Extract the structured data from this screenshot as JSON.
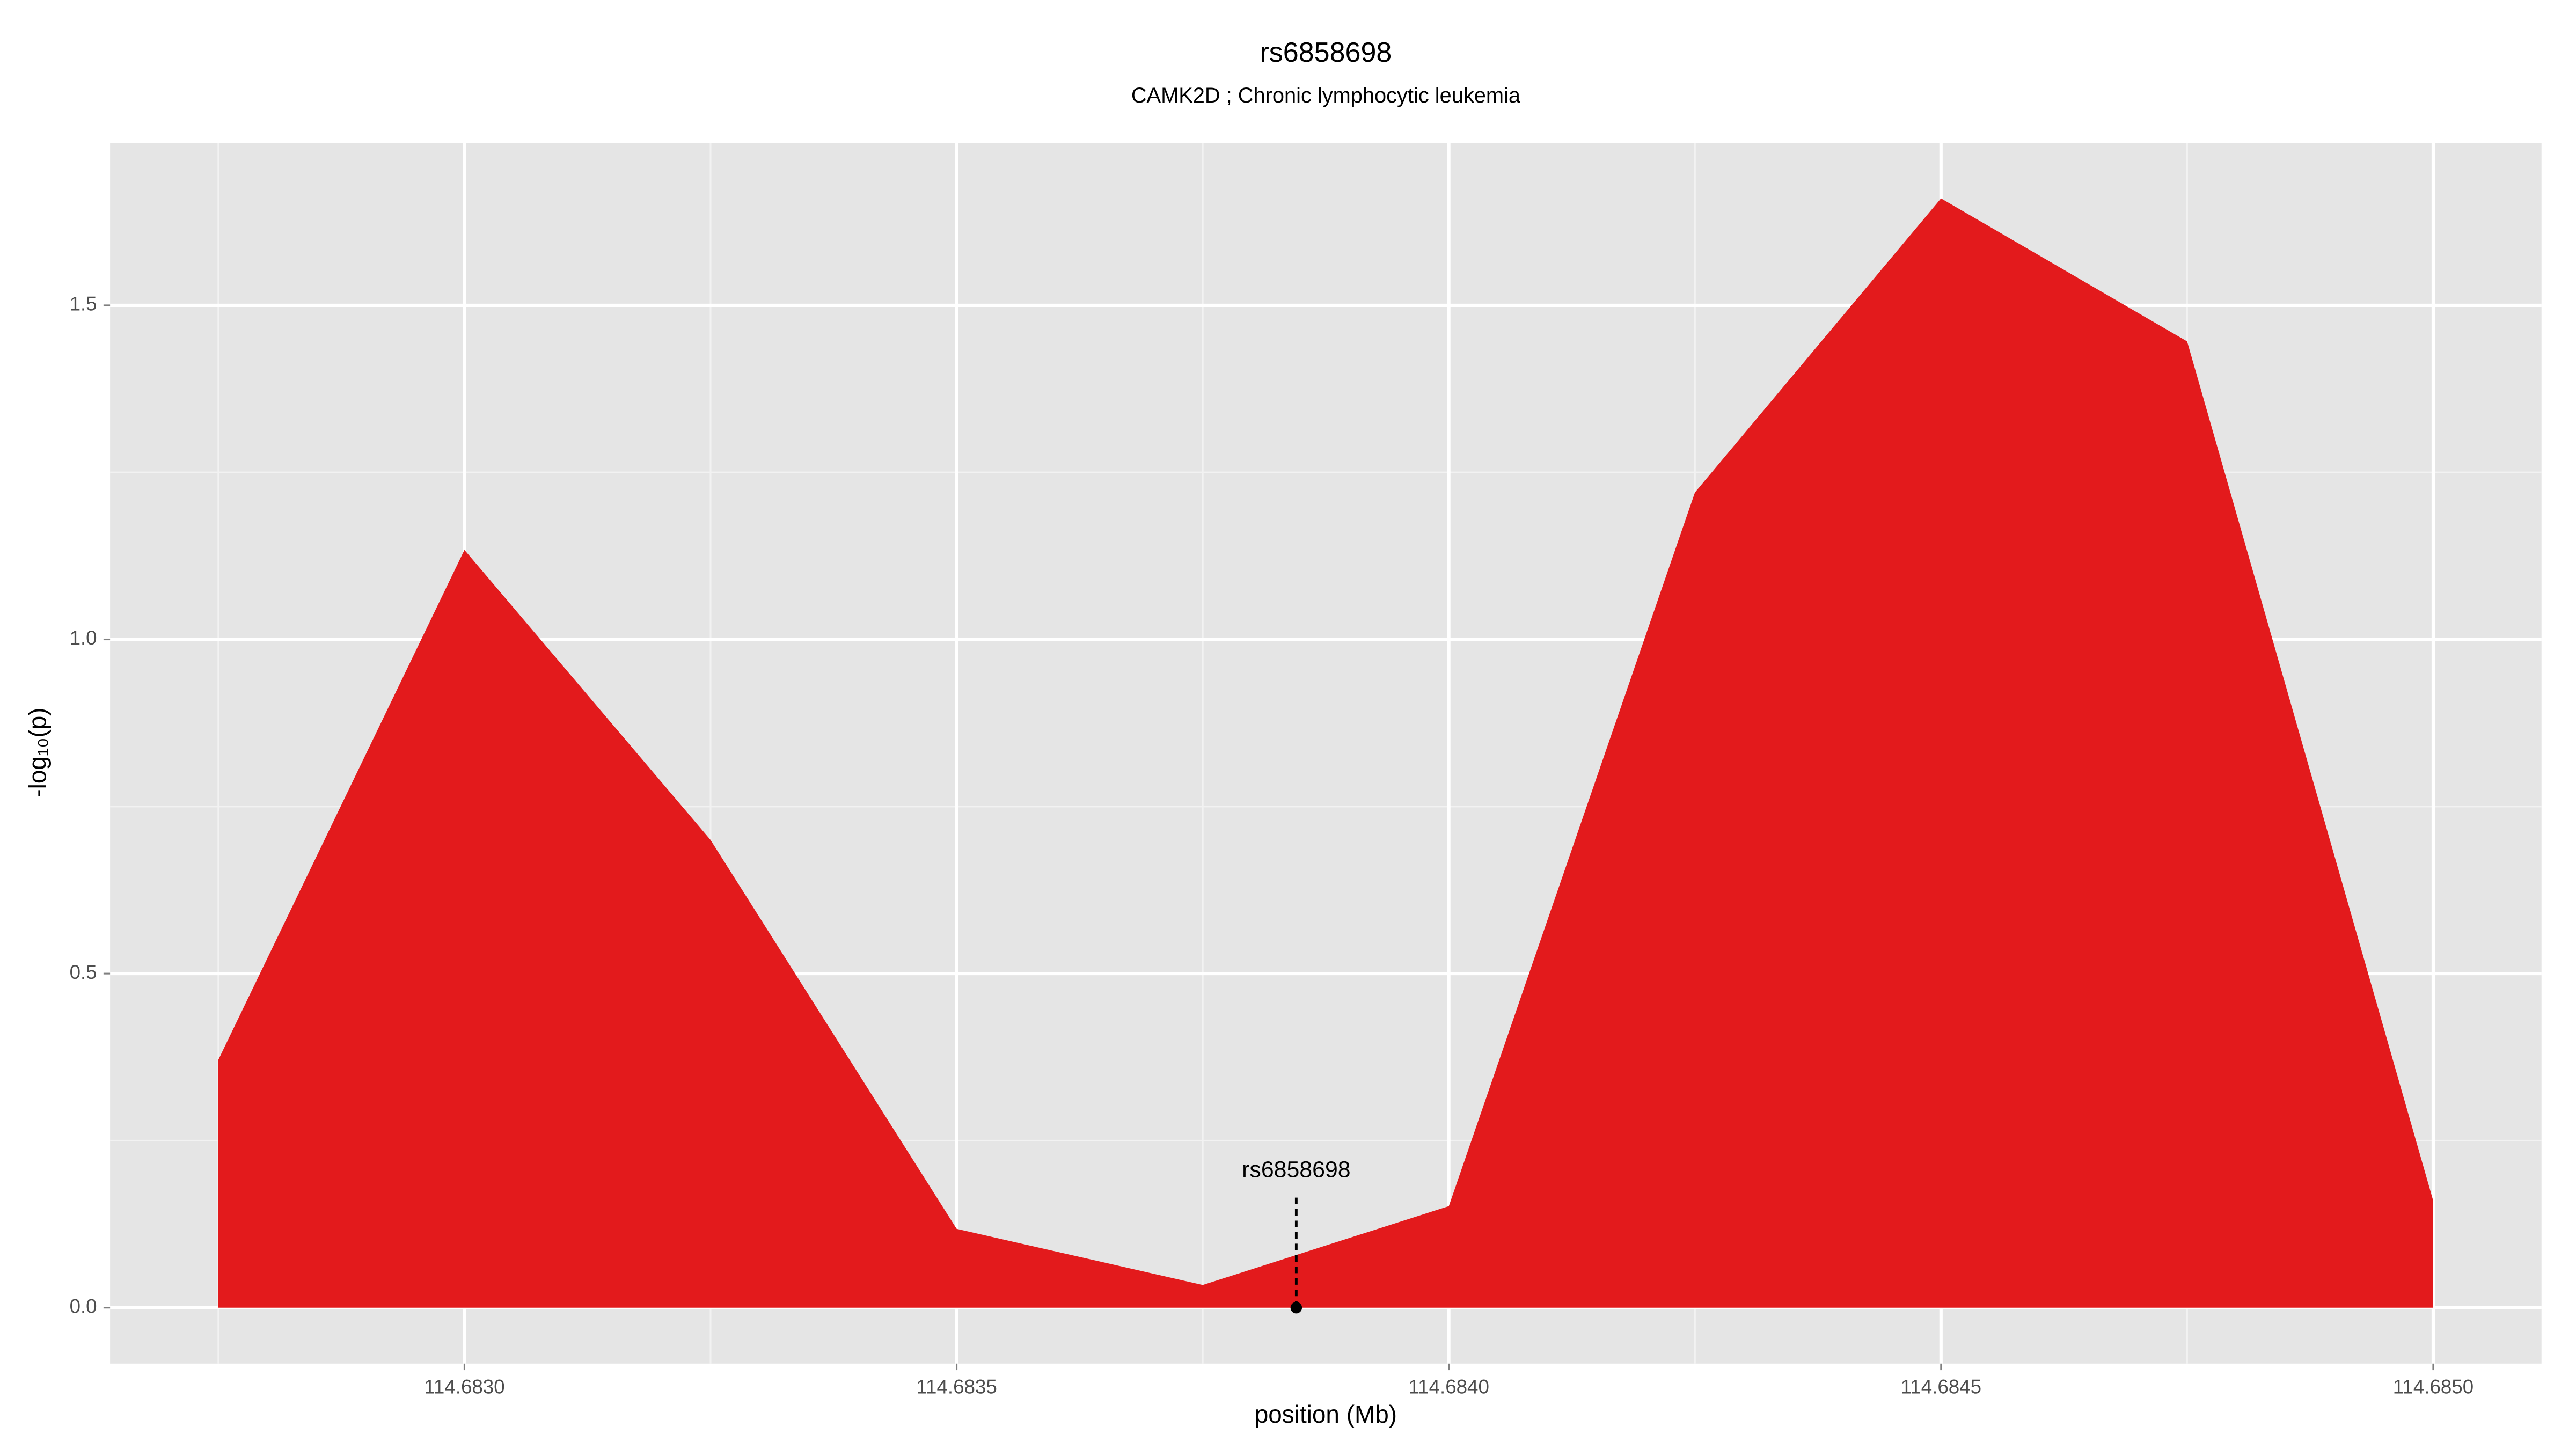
{
  "chart_data": {
    "type": "area",
    "title": "rs6858698",
    "subtitle": "CAMK2D ; Chronic lymphocytic leukemia",
    "xlabel": "position (Mb)",
    "ylabel": "-log₁₀(p)",
    "color": "#e31a1c",
    "x": [
      114.68275,
      114.683,
      114.68325,
      114.6835,
      114.68375,
      114.684,
      114.68425,
      114.6845,
      114.68475,
      114.685
    ],
    "values": [
      0.371,
      1.134,
      0.7,
      0.118,
      0.034,
      0.152,
      1.22,
      1.66,
      1.446,
      0.16
    ],
    "xlim": [
      114.68264,
      114.68511
    ],
    "ylim": [
      -0.0836,
      1.743
    ],
    "xticks": [
      {
        "value": 114.683,
        "label": "114.6830"
      },
      {
        "value": 114.6835,
        "label": "114.6835"
      },
      {
        "value": 114.684,
        "label": "114.6840"
      },
      {
        "value": 114.6845,
        "label": "114.6845"
      },
      {
        "value": 114.685,
        "label": "114.6850"
      }
    ],
    "yticks": [
      {
        "value": 0,
        "label": "0.0"
      },
      {
        "value": 0.5,
        "label": "0.5"
      },
      {
        "value": 1,
        "label": "1.0"
      },
      {
        "value": 1.5,
        "label": "1.5"
      }
    ],
    "minor_xticks": [
      114.68275,
      114.68325,
      114.68375,
      114.68425,
      114.68475
    ],
    "minor_yticks": [
      0.25,
      0.75,
      1.25
    ],
    "grid": true,
    "annotation": {
      "label": "rs6858698",
      "x": 114.683845,
      "y": 0,
      "line_top": 0.165
    }
  }
}
